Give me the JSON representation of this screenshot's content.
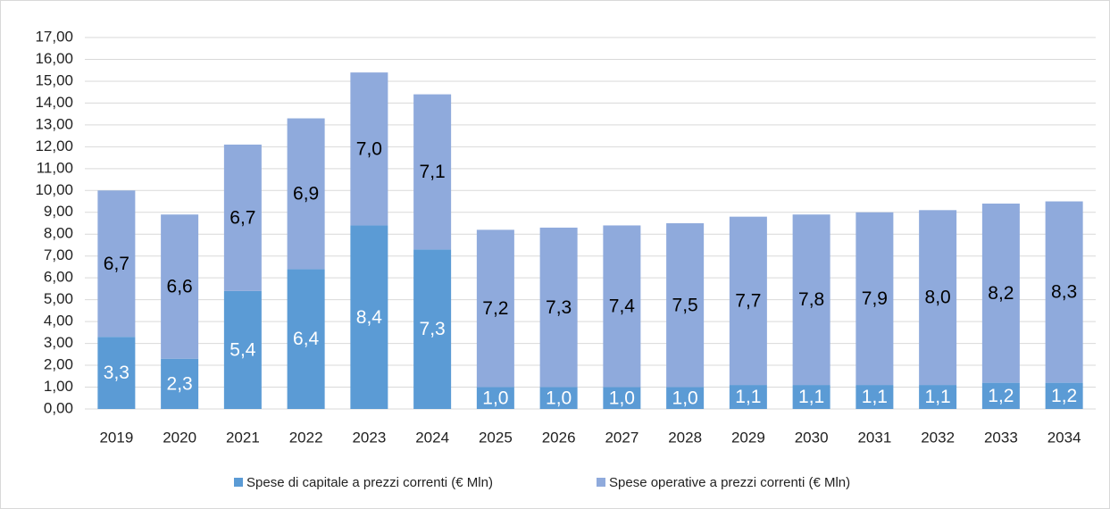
{
  "chart_data": {
    "type": "stacked-bar",
    "categories": [
      "2019",
      "2020",
      "2021",
      "2022",
      "2023",
      "2024",
      "2025",
      "2026",
      "2027",
      "2028",
      "2029",
      "2030",
      "2031",
      "2032",
      "2033",
      "2034"
    ],
    "series": [
      {
        "name": "Spese di capitale a prezzi correnti (€ Mln)",
        "color": "#5b9bd5",
        "values": [
          3.3,
          2.3,
          5.4,
          6.4,
          8.4,
          7.3,
          1.0,
          1.0,
          1.0,
          1.0,
          1.1,
          1.1,
          1.1,
          1.1,
          1.2,
          1.2
        ],
        "value_labels": [
          "3,3",
          "2,3",
          "5,4",
          "6,4",
          "8,4",
          "7,3",
          "1,0",
          "1,0",
          "1,0",
          "1,0",
          "1,1",
          "1,1",
          "1,1",
          "1,1",
          "1,2",
          "1,2"
        ]
      },
      {
        "name": "Spese operative a prezzi correnti (€ Mln)",
        "color": "#8faadc",
        "values": [
          6.7,
          6.6,
          6.7,
          6.9,
          7.0,
          7.1,
          7.2,
          7.3,
          7.4,
          7.5,
          7.7,
          7.8,
          7.9,
          8.0,
          8.2,
          8.3
        ],
        "value_labels": [
          "6,7",
          "6,6",
          "6,7",
          "6,9",
          "7,0",
          "7,1",
          "7,2",
          "7,3",
          "7,4",
          "7,5",
          "7,7",
          "7,8",
          "7,9",
          "8,0",
          "8,2",
          "8,3"
        ]
      }
    ],
    "ylim": [
      0,
      17
    ],
    "yticks": [
      {
        "value": 0,
        "label": "0,00"
      },
      {
        "value": 1,
        "label": "1,00"
      },
      {
        "value": 2,
        "label": "2,00"
      },
      {
        "value": 3,
        "label": "3,00"
      },
      {
        "value": 4,
        "label": "4,00"
      },
      {
        "value": 5,
        "label": "5,00"
      },
      {
        "value": 6,
        "label": "6,00"
      },
      {
        "value": 7,
        "label": "7,00"
      },
      {
        "value": 8,
        "label": "8,00"
      },
      {
        "value": 9,
        "label": "9,00"
      },
      {
        "value": 10,
        "label": "10,00"
      },
      {
        "value": 11,
        "label": "11,00"
      },
      {
        "value": 12,
        "label": "12,00"
      },
      {
        "value": 13,
        "label": "13,00"
      },
      {
        "value": 14,
        "label": "14,00"
      },
      {
        "value": 15,
        "label": "15,00"
      },
      {
        "value": 16,
        "label": "16,00"
      },
      {
        "value": 17,
        "label": "17,00"
      }
    ],
    "grid": true,
    "legend": "bottom"
  }
}
